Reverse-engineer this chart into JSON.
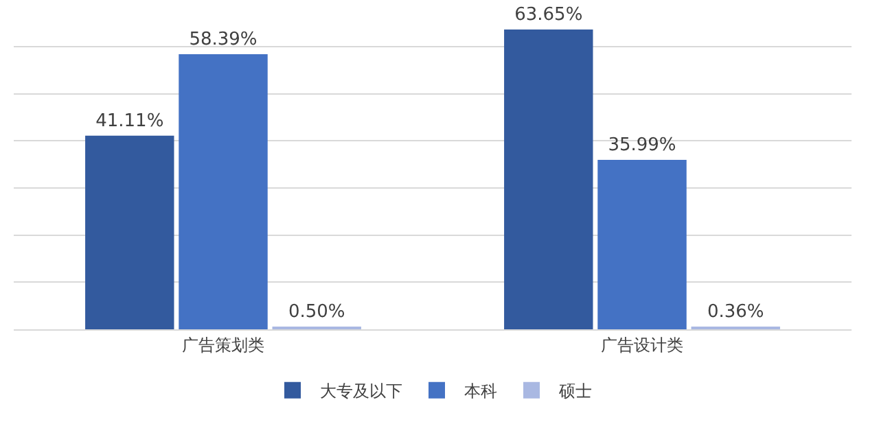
{
  "chart_data": {
    "type": "bar",
    "categories": [
      "广告策划类",
      "广告设计类"
    ],
    "series": [
      {
        "name": "大专及以下",
        "color": "#335a9e",
        "values": [
          41.11,
          63.65
        ],
        "value_labels": [
          "41.11%",
          "63.65%"
        ]
      },
      {
        "name": "本科",
        "color": "#4472c4",
        "values": [
          58.39,
          35.99
        ],
        "value_labels": [
          "58.39%",
          "35.99%"
        ]
      },
      {
        "name": "硕士",
        "color": "#a9b8e2",
        "values": [
          0.5,
          0.36
        ],
        "value_labels": [
          "0.50%",
          "0.36%"
        ]
      }
    ],
    "yticks": [
      {
        "value": 0,
        "label": null
      },
      {
        "value": 10,
        "label": null
      },
      {
        "value": 20,
        "label": null
      },
      {
        "value": 30,
        "label": null
      },
      {
        "value": 40,
        "label": null
      },
      {
        "value": 50,
        "label": null
      },
      {
        "value": 60,
        "label": null
      }
    ],
    "tick_labels": "x",
    "grid": "y",
    "legend": "bottom"
  }
}
